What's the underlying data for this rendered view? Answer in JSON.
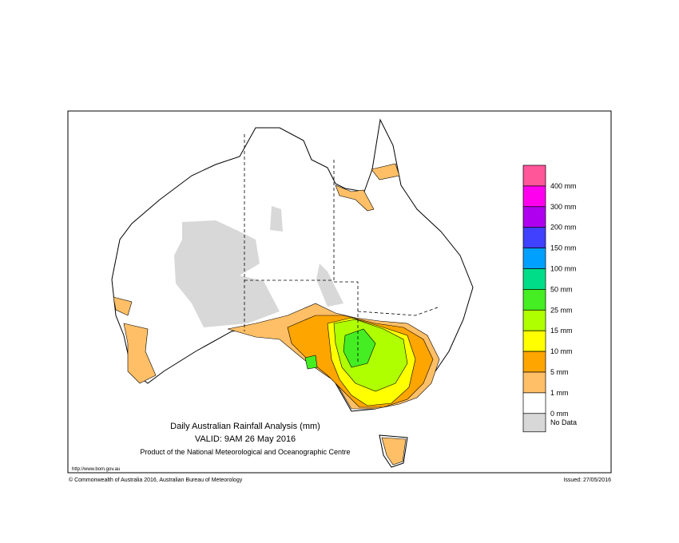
{
  "title": "Daily Australian Rainfall Analysis (mm)",
  "valid": "VALID: 9AM 26 May 2016",
  "product": "Product of the National Meteorological and Oceanographic Centre",
  "url": "http://www.bom.gov.au",
  "copyright": "© Commonwealth of Australia 2016, Australian Bureau of Meteorology",
  "issued": "Issued: 27/05/2016",
  "legend": {
    "colors": [
      "#ff5599",
      "#ff00ee",
      "#b000f0",
      "#4040ff",
      "#00a0ff",
      "#00dd88",
      "#44ee22",
      "#b0ff00",
      "#ffff00",
      "#ffa500",
      "#ffbf66",
      "#ffffff",
      "#d8d8d8"
    ],
    "labels": [
      "400 mm",
      "300 mm",
      "200 mm",
      "150 mm",
      "100 mm",
      "50 mm",
      "25 mm",
      "15 mm",
      "10 mm",
      "5 mm",
      "1 mm",
      "0 mm",
      "No Data"
    ]
  }
}
